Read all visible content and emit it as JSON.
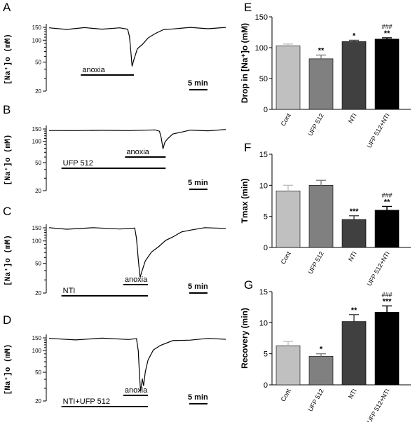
{
  "panels_left": [
    {
      "letter": "A",
      "ylabel": "[Na⁺]o  (mM)",
      "ticks": [
        150,
        100,
        50,
        20
      ],
      "bars": [
        {
          "label": "anoxia",
          "start": 0.18,
          "end": 0.48
        }
      ],
      "scale": "5 min",
      "trace": [
        [
          0,
          145
        ],
        [
          0.1,
          143
        ],
        [
          0.2,
          146
        ],
        [
          0.3,
          144
        ],
        [
          0.4,
          145
        ],
        [
          0.445,
          144
        ],
        [
          0.455,
          110
        ],
        [
          0.465,
          62
        ],
        [
          0.47,
          43
        ],
        [
          0.48,
          55
        ],
        [
          0.5,
          75
        ],
        [
          0.53,
          90
        ],
        [
          0.56,
          105
        ],
        [
          0.6,
          125
        ],
        [
          0.65,
          138
        ],
        [
          0.7,
          145
        ],
        [
          0.8,
          147
        ],
        [
          0.9,
          146
        ],
        [
          1.0,
          147
        ]
      ]
    },
    {
      "letter": "B",
      "ylabel": "[Na⁺]o  (mM)",
      "ticks": [
        150,
        100,
        50,
        20
      ],
      "bars": [
        {
          "label": "UFP 512",
          "start": 0.07,
          "end": 0.66
        },
        {
          "label": "anoxia",
          "start": 0.43,
          "end": 0.66
        }
      ],
      "scale": "5 min",
      "trace": [
        [
          0,
          140
        ],
        [
          0.15,
          145
        ],
        [
          0.3,
          141
        ],
        [
          0.45,
          145
        ],
        [
          0.6,
          143
        ],
        [
          0.625,
          142
        ],
        [
          0.635,
          110
        ],
        [
          0.645,
          80
        ],
        [
          0.655,
          95
        ],
        [
          0.67,
          110
        ],
        [
          0.7,
          125
        ],
        [
          0.75,
          138
        ],
        [
          0.8,
          142
        ],
        [
          0.9,
          144
        ],
        [
          1.0,
          145
        ]
      ]
    },
    {
      "letter": "C",
      "ylabel": "[Na⁺]o  (mM)",
      "ticks": [
        150,
        100,
        50,
        20
      ],
      "bars": [
        {
          "label": "NTI",
          "start": 0.07,
          "end": 0.56
        },
        {
          "label": "anoxia",
          "start": 0.42,
          "end": 0.56
        }
      ],
      "scale": "5 min",
      "trace": [
        [
          0,
          148
        ],
        [
          0.1,
          146
        ],
        [
          0.25,
          148
        ],
        [
          0.4,
          147
        ],
        [
          0.485,
          146
        ],
        [
          0.495,
          110
        ],
        [
          0.505,
          55
        ],
        [
          0.515,
          33
        ],
        [
          0.525,
          38
        ],
        [
          0.545,
          55
        ],
        [
          0.58,
          70
        ],
        [
          0.62,
          85
        ],
        [
          0.66,
          100
        ],
        [
          0.7,
          115
        ],
        [
          0.75,
          130
        ],
        [
          0.8,
          142
        ],
        [
          0.88,
          148
        ],
        [
          1.0,
          150
        ]
      ]
    },
    {
      "letter": "D",
      "ylabel": "[Na⁺]o  (mM)",
      "ticks": [
        150,
        100,
        50,
        20
      ],
      "bars": [
        {
          "label": "NTI+UFP 512",
          "start": 0.07,
          "end": 0.56
        },
        {
          "label": "anoxia",
          "start": 0.42,
          "end": 0.56
        }
      ],
      "scale": "5 min",
      "trace": [
        [
          0,
          145
        ],
        [
          0.15,
          143
        ],
        [
          0.3,
          146
        ],
        [
          0.45,
          145
        ],
        [
          0.495,
          144
        ],
        [
          0.505,
          100
        ],
        [
          0.512,
          45
        ],
        [
          0.518,
          28
        ],
        [
          0.528,
          40
        ],
        [
          0.535,
          33
        ],
        [
          0.545,
          50
        ],
        [
          0.56,
          75
        ],
        [
          0.59,
          100
        ],
        [
          0.63,
          120
        ],
        [
          0.7,
          135
        ],
        [
          0.8,
          142
        ],
        [
          0.9,
          145
        ],
        [
          1.0,
          146
        ]
      ]
    }
  ],
  "chart_data": [
    {
      "type": "bar",
      "letter": "E",
      "ylabel": "Drop in [Na⁺]o (mM)",
      "categories": [
        "Cont",
        "UFP 512",
        "NTI",
        "UFP 512+NTI"
      ],
      "values": [
        103,
        82,
        110,
        114
      ],
      "errors": [
        3,
        6,
        2,
        2
      ],
      "significance": [
        "",
        "**",
        "*",
        "**"
      ],
      "significance2": [
        "",
        "",
        "",
        "###"
      ],
      "ylim": [
        0,
        150
      ],
      "yticks": [
        0,
        50,
        100,
        150
      ],
      "colors": [
        "#c0c0c0",
        "#808080",
        "#404040",
        "#000000"
      ]
    },
    {
      "type": "bar",
      "letter": "F",
      "ylabel": "Tmax (min)",
      "categories": [
        "Cont",
        "UFP 512",
        "NTI",
        "UFP 512+NTI"
      ],
      "values": [
        9.1,
        10.0,
        4.5,
        6.0
      ],
      "errors": [
        0.9,
        0.8,
        0.6,
        0.6
      ],
      "significance": [
        "",
        "",
        "***",
        "**"
      ],
      "significance2": [
        "",
        "",
        "",
        "###"
      ],
      "ylim": [
        0,
        15
      ],
      "yticks": [
        0,
        5,
        10,
        15
      ],
      "colors": [
        "#c0c0c0",
        "#808080",
        "#404040",
        "#000000"
      ]
    },
    {
      "type": "bar",
      "letter": "G",
      "ylabel": "Recovery (min)",
      "categories": [
        "Cont",
        "UFP 512",
        "NTI",
        "UFP 512+NTI"
      ],
      "values": [
        6.3,
        4.6,
        10.2,
        11.7
      ],
      "errors": [
        0.7,
        0.4,
        1.1,
        1.0
      ],
      "significance": [
        "",
        "*",
        "**",
        "***"
      ],
      "significance2": [
        "",
        "",
        "",
        "###"
      ],
      "ylim": [
        0,
        15
      ],
      "yticks": [
        0,
        5,
        10,
        15
      ],
      "colors": [
        "#c0c0c0",
        "#808080",
        "#404040",
        "#000000"
      ]
    }
  ]
}
